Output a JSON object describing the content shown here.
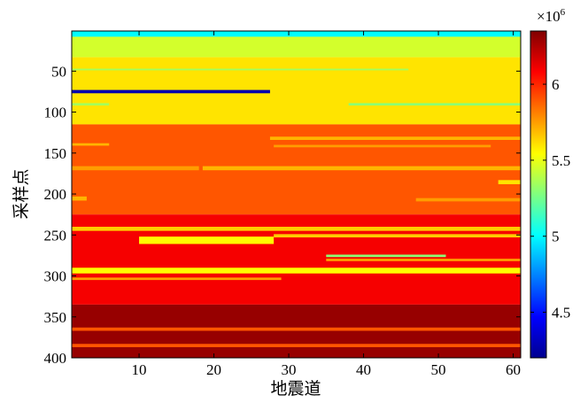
{
  "chart_data": {
    "type": "heatmap",
    "title": "",
    "xlabel": "地震道",
    "ylabel": "采样点",
    "xlim": [
      1,
      61
    ],
    "ylim": [
      1,
      400
    ],
    "y_reversed": true,
    "x_ticks": [
      "10",
      "20",
      "30",
      "40",
      "50",
      "60"
    ],
    "y_ticks": [
      "50",
      "100",
      "150",
      "200",
      "250",
      "300",
      "350",
      "400"
    ],
    "colormap": "jet",
    "colorbar": {
      "range": [
        4200000,
        6350000
      ],
      "ticks": [
        "4.5",
        "5",
        "5.5",
        "6"
      ],
      "exponent_label": "×10",
      "exponent_power": "6"
    },
    "colors": {
      "top_strip": "#1ea3e6",
      "green_band": "#a8f05a",
      "yellow_green": "#d8f43a",
      "thin_blue": "#0018cc",
      "orange": "#ff6a00",
      "light_orange": "#ffa000",
      "yellow": "#f4f01c",
      "red": "#e61400",
      "dark_red": "#aa0000",
      "cyan_line": "#7ee8c8",
      "gray_line": "#b8b8b8"
    },
    "layers": [
      {
        "y": [
          1,
          8
        ],
        "x": [
          1,
          61
        ],
        "value": 5000000
      },
      {
        "y": [
          8,
          33
        ],
        "x": [
          1,
          61
        ],
        "value": 5450000
      },
      {
        "y": [
          33,
          115
        ],
        "x": [
          1,
          61
        ],
        "value": 5600000
      },
      {
        "y": [
          73,
          77
        ],
        "x": [
          1,
          27.5
        ],
        "value": 4300000
      },
      {
        "y": [
          47,
          49
        ],
        "x": [
          1,
          46
        ],
        "value": 5350000
      },
      {
        "y": [
          89,
          92
        ],
        "x": [
          38,
          61
        ],
        "value": 5300000
      },
      {
        "y": [
          89,
          92
        ],
        "x": [
          1,
          6
        ],
        "value": 5350000
      },
      {
        "y": [
          115,
          225
        ],
        "x": [
          1,
          61
        ],
        "value": 5900000
      },
      {
        "y": [
          130,
          134
        ],
        "x": [
          27.5,
          61
        ],
        "value": 5700000
      },
      {
        "y": [
          138,
          141
        ],
        "x": [
          1,
          6
        ],
        "value": 5700000
      },
      {
        "y": [
          140,
          143
        ],
        "x": [
          28,
          57
        ],
        "value": 5750000
      },
      {
        "y": [
          166,
          171
        ],
        "x": [
          1,
          18
        ],
        "value": 5750000
      },
      {
        "y": [
          166,
          171
        ],
        "x": [
          18.5,
          61
        ],
        "value": 5700000
      },
      {
        "y": [
          183,
          188
        ],
        "x": [
          58,
          61
        ],
        "value": 5600000
      },
      {
        "y": [
          203,
          208
        ],
        "x": [
          1,
          3
        ],
        "value": 5700000
      },
      {
        "y": [
          205,
          209
        ],
        "x": [
          47,
          61
        ],
        "value": 5750000
      },
      {
        "y": [
          225,
          335
        ],
        "x": [
          1,
          61
        ],
        "value": 6100000
      },
      {
        "y": [
          240,
          245
        ],
        "x": [
          1,
          61
        ],
        "value": 5650000
      },
      {
        "y": [
          252,
          261
        ],
        "x": [
          10,
          28
        ],
        "value": 5550000
      },
      {
        "y": [
          249,
          253
        ],
        "x": [
          28,
          61
        ],
        "value": 5650000
      },
      {
        "y": [
          274,
          277
        ],
        "x": [
          35,
          51
        ],
        "value": 5300000
      },
      {
        "y": [
          279,
          282
        ],
        "x": [
          35,
          61
        ],
        "value": 5750000
      },
      {
        "y": [
          290,
          297
        ],
        "x": [
          1,
          61
        ],
        "value": 5550000
      },
      {
        "y": [
          302,
          305
        ],
        "x": [
          1,
          29
        ],
        "value": 5750000
      },
      {
        "y": [
          335,
          400
        ],
        "x": [
          1,
          61
        ],
        "value": 6300000
      },
      {
        "y": [
          363,
          367
        ],
        "x": [
          1,
          61
        ],
        "value": 5900000
      },
      {
        "y": [
          383,
          387
        ],
        "x": [
          1,
          61
        ],
        "value": 5900000
      }
    ]
  }
}
